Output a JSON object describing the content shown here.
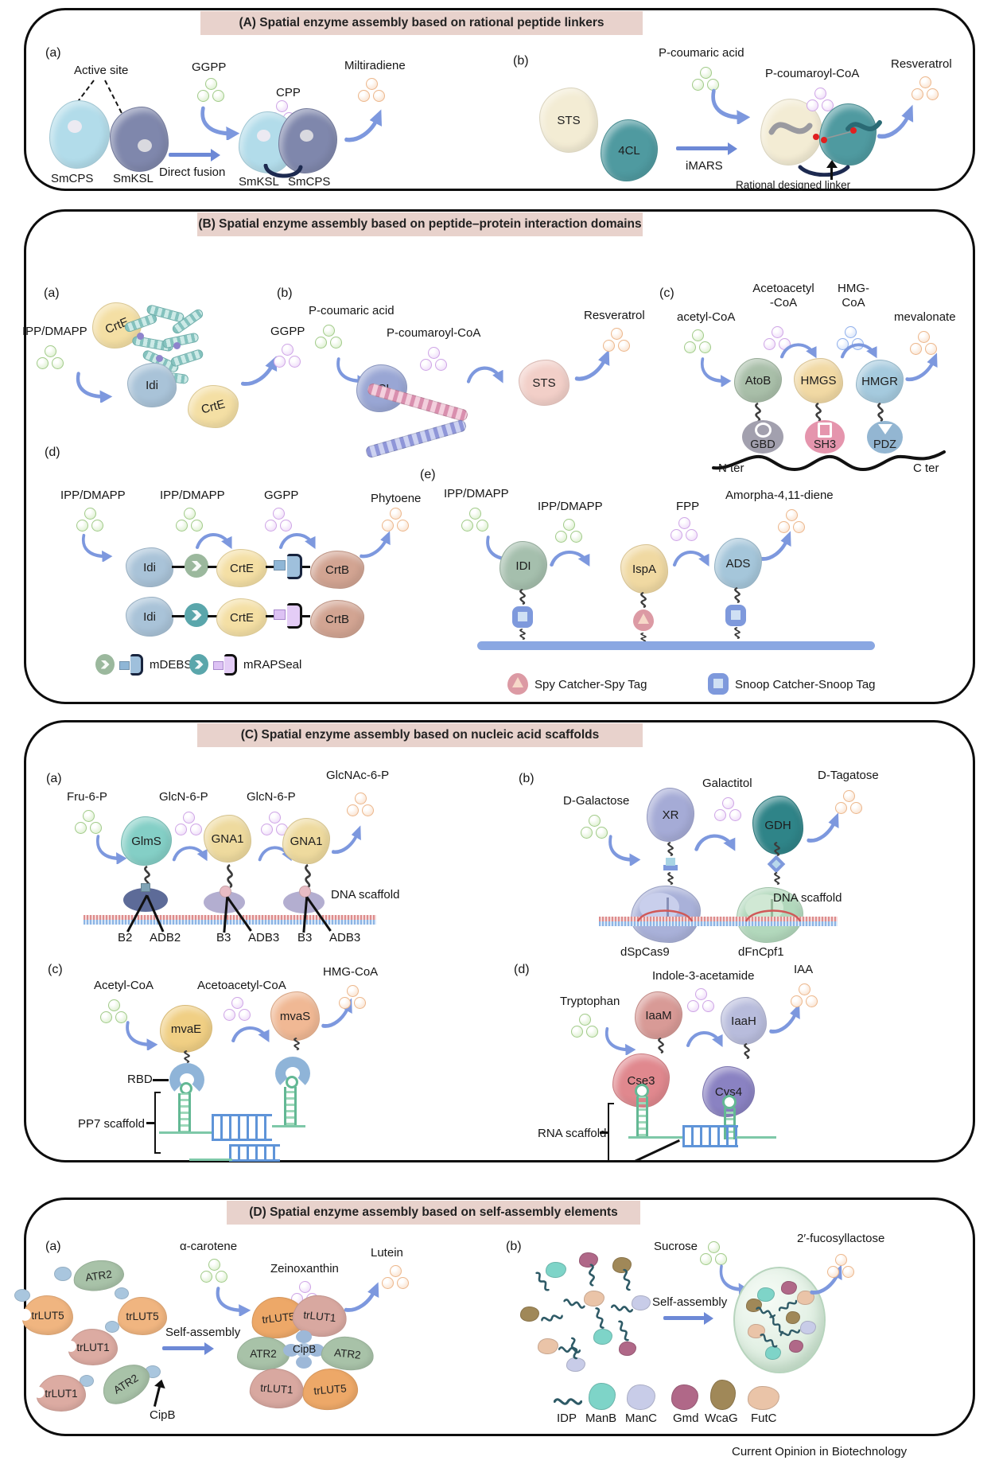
{
  "colors": {
    "banner": "#e8d2cc",
    "arrow_blue": "#7d98de",
    "dot_green": "#d5ecc4",
    "dot_purple": "#ebd4f8",
    "dot_orange": "#f9dcc4",
    "dot_blue": "#cfdef8",
    "dna_red": "#dd8c8c",
    "dna_blue": "#8cb4e4"
  },
  "footer": "Current Opinion in Biotechnology",
  "A": {
    "title": "(A) Spatial enzyme assembly based on rational peptide linkers",
    "a": {
      "tag": "(a)",
      "active_site": "Active  site",
      "smcps": "SmCPS",
      "smksl": "SmKSL",
      "ggpp": "GGPP",
      "direct_fusion": "Direct fusion",
      "cpp": "CPP",
      "fused_smksl": "SmKSL",
      "fused_smcps": "SmCPS",
      "miltiradiene": "Miltiradiene"
    },
    "b": {
      "tag": "(b)",
      "sts": "STS",
      "cl4": "4CL",
      "p_coumaric_acid": "P-coumaric acid",
      "imars": "iMARS",
      "p_coumaroyl_coa": "P-coumaroyl-CoA",
      "resveratrol": "Resveratrol",
      "linker": "Rational designed linker"
    }
  },
  "B": {
    "title": "(B) Spatial enzyme assembly based on peptide–protein interaction domains",
    "a": {
      "tag": "(a)",
      "ipp": "IPP/DMAPP",
      "crte1": "CrtE",
      "idi": "Idi",
      "crte2": "CrtE",
      "ggpp": "GGPP"
    },
    "b": {
      "tag": "(b)",
      "p_coumaric_acid": "P-coumaric acid",
      "cl4": "4CL",
      "p_coumaroyl_coa": "P-coumaroyl-CoA",
      "sts": "STS",
      "resveratrol": "Resveratrol"
    },
    "c": {
      "tag": "(c)",
      "acetyl": "acetyl-CoA",
      "acetoacetyl1": "Acetoacetyl",
      "acetoacetyl2": "-CoA",
      "hmg1": "HMG-",
      "hmg2": "CoA",
      "mevalonate": "mevalonate",
      "atob": "AtoB",
      "hmgs": "HMGS",
      "hmgr": "HMGR",
      "gbd": "GBD",
      "sh3": "SH3",
      "pdz": "PDZ",
      "nter": "N ter",
      "cter": "C ter"
    },
    "d": {
      "tag": "(d)",
      "ipp1": "IPP/DMAPP",
      "ipp2": "IPP/DMAPP",
      "ggpp": "GGPP",
      "phytoene": "Phytoene",
      "idi": "Idi",
      "crte": "CrtE",
      "crtb": "CrtB",
      "mdebseal": "mDEBSeal",
      "mrapseal": "mRAPSeal"
    },
    "e": {
      "tag": "(e)",
      "ipp1": "IPP/DMAPP",
      "ipp2": "IPP/DMAPP",
      "fpp": "FPP",
      "amorphadiene": "Amorpha-4,11-diene",
      "idi": "IDI",
      "ispa": "IspA",
      "ads": "ADS",
      "spy": "Spy Catcher-Spy Tag",
      "snoop": "Snoop Catcher-Snoop Tag"
    }
  },
  "C": {
    "title": "(C) Spatial enzyme assembly based on nucleic acid scaffolds",
    "a": {
      "tag": "(a)",
      "fru6p": "Fru-6-P",
      "glcn6p_1": "GlcN-6-P",
      "glcn6p_2": "GlcN-6-P",
      "glcnac6p": "GlcNAc-6-P",
      "glms": "GlmS",
      "gna1_1": "GNA1",
      "gna1_2": "GNA1",
      "scaffold": "DNA scaffold",
      "b2": "B2",
      "adb2": "ADB2",
      "b3a": "B3",
      "adb3a": "ADB3",
      "b3b": "B3",
      "adb3b": "ADB3"
    },
    "b": {
      "tag": "(b)",
      "dgalactose": "D-Galactose",
      "xr": "XR",
      "galactitol": "Galactitol",
      "gdh": "GDH",
      "dtagatose": "D-Tagatose",
      "scaffold": "DNA scaffold",
      "cas9": "dSpCas9",
      "cpf1": "dFnCpf1"
    },
    "c": {
      "tag": "(c)",
      "acetyl": "Acetyl-CoA",
      "mvae": "mvaE",
      "acetoacetyl": "Acetoacetyl-CoA",
      "mvas": "mvaS",
      "hmg": "HMG-CoA",
      "rbd": "RBD",
      "scaffold": "PP7 scaffold"
    },
    "d": {
      "tag": "(d)",
      "tryptophan": "Tryptophan",
      "iaam": "IaaM",
      "indole": "Indole-3-acetamide",
      "iaah": "IaaH",
      "iaa": "IAA",
      "cse3": "Cse3",
      "cys4": "Cys4",
      "scaffold": "RNA scaffold"
    }
  },
  "D": {
    "title": "(D) Spatial enzyme assembly based on self-assembly elements",
    "a": {
      "tag": "(a)",
      "atr2_1": "ATR2",
      "trlut5_1": "trLUT5",
      "trlut5_2": "trLUT5",
      "trlut1_1": "trLUT1",
      "trlut1_2": "trLUT1",
      "atr2_2": "ATR2",
      "cipb": "CipB",
      "self_assembly": "Self-assembly",
      "carotene": "α-carotene",
      "zeinoxanthin": "Zeinoxanthin",
      "lutein": "Lutein",
      "as_trlut5_tl": "trLUT5",
      "as_trlut1_tr": "trLUT1",
      "as_atr2_l": "ATR2",
      "as_cipb": "CipB",
      "as_atr2_r": "ATR2",
      "as_trlut1_bl": "trLUT1",
      "as_trlut5_br": "trLUT5"
    },
    "b": {
      "tag": "(b)",
      "sucrose": "Sucrose",
      "self_assembly": "Self-assembly",
      "fucosyllactose": "2′-fucosyllactose",
      "idp": "IDP",
      "manb": "ManB",
      "manc": "ManC",
      "gmd": "Gmd",
      "wcag": "WcaG",
      "futc": "FutC"
    }
  }
}
